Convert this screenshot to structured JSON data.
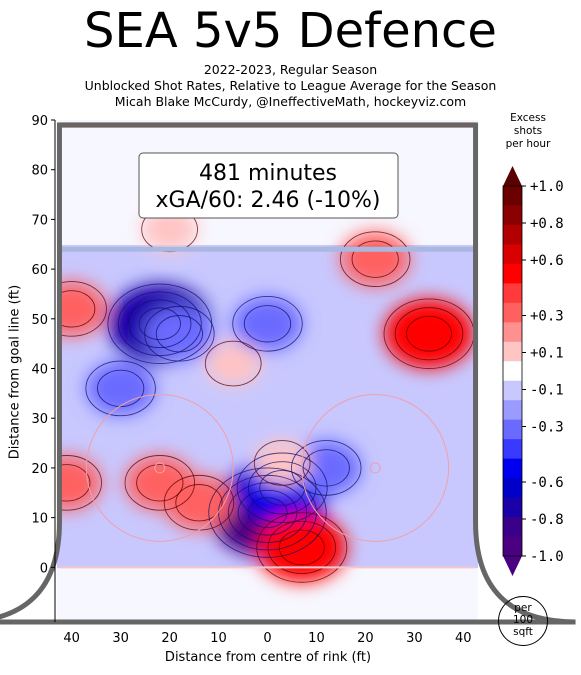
{
  "header": {
    "title": "SEA 5v5 Defence",
    "subtitle_line1": "2022-2023, Regular Season",
    "subtitle_line2": "Unblocked Shot Rates, Relative to League Average for the Season",
    "subtitle_line3": "Micah Blake McCurdy, @IneffectiveMath, hockeyviz.com"
  },
  "annotation": {
    "minutes": "481 minutes",
    "xga": "xGA/60: 2.46 (-10%)"
  },
  "colorbar": {
    "title": [
      "Excess",
      "shots",
      "per hour"
    ],
    "tick_labels": [
      "+1.0",
      "+0.8",
      "+0.6",
      "+0.3",
      "+0.1",
      "-0.1",
      "-0.3",
      "-0.6",
      "-0.8",
      "-1.0"
    ],
    "tick_values": [
      1.0,
      0.8,
      0.6,
      0.3,
      0.1,
      -0.1,
      -0.3,
      -0.6,
      -0.8,
      -1.0
    ],
    "levels": [
      "#6b0000",
      "#8b0000",
      "#b20000",
      "#d80000",
      "#ff0000",
      "#ff3a3a",
      "#ff6060",
      "#ff9090",
      "#ffc4c4",
      "#ffffff",
      "#c8c8ff",
      "#9a9aff",
      "#6a6aff",
      "#3a3aff",
      "#0000ee",
      "#0000c8",
      "#1a00a8",
      "#3a008a",
      "#4b0082"
    ]
  },
  "per_badge": [
    "per",
    "100",
    "sqft"
  ],
  "colors": {
    "rink_border": "#666666",
    "blue_line": "#a8b8e0",
    "goal_line": "#f4c6cc",
    "background": "#f7f7ff",
    "circle": "#f0a0a8"
  },
  "chart_data": {
    "type": "heatmap",
    "title": "SEA 5v5 Defence",
    "xlabel": "Distance from centre of rink (ft)",
    "ylabel": "Distance from goal line (ft)",
    "xlim": [
      43,
      -43
    ],
    "ylim": [
      -11,
      90
    ],
    "x_ticks": [
      "40",
      "30",
      "20",
      "10",
      "0",
      "10",
      "20",
      "30",
      "40"
    ],
    "x_tick_values": [
      -40,
      -30,
      -20,
      -10,
      0,
      10,
      20,
      30,
      40
    ],
    "y_ticks": [
      "0",
      "10",
      "20",
      "30",
      "40",
      "50",
      "60",
      "70",
      "80",
      "90"
    ],
    "y_tick_values": [
      0,
      10,
      20,
      30,
      40,
      50,
      60,
      70,
      80,
      90
    ],
    "value_units": "excess shots per hour per 100 sqft",
    "regions": [
      {
        "x": 0,
        "y": 11,
        "value": -1.0
      },
      {
        "x": -3,
        "y": 16,
        "value": -0.6
      },
      {
        "x": -12,
        "y": 20,
        "value": -0.3
      },
      {
        "x": 22,
        "y": 49,
        "value": -0.8
      },
      {
        "x": 18,
        "y": 47,
        "value": -0.3
      },
      {
        "x": -33,
        "y": 47,
        "value": 0.6
      },
      {
        "x": -22,
        "y": 62,
        "value": 0.3
      },
      {
        "x": -7,
        "y": 4,
        "value": 0.6
      },
      {
        "x": 14,
        "y": 13,
        "value": 0.3
      },
      {
        "x": 22,
        "y": 17,
        "value": 0.3
      },
      {
        "x": 40,
        "y": 52,
        "value": 0.3
      },
      {
        "x": 41,
        "y": 17,
        "value": 0.3
      },
      {
        "x": 20,
        "y": 68,
        "value": 0.1
      },
      {
        "x": 7,
        "y": 41,
        "value": 0.1
      },
      {
        "x": -3,
        "y": 21,
        "value": 0.1
      },
      {
        "x": 30,
        "y": 36,
        "value": -0.3
      },
      {
        "x": 0,
        "y": 49,
        "value": -0.3
      }
    ]
  }
}
